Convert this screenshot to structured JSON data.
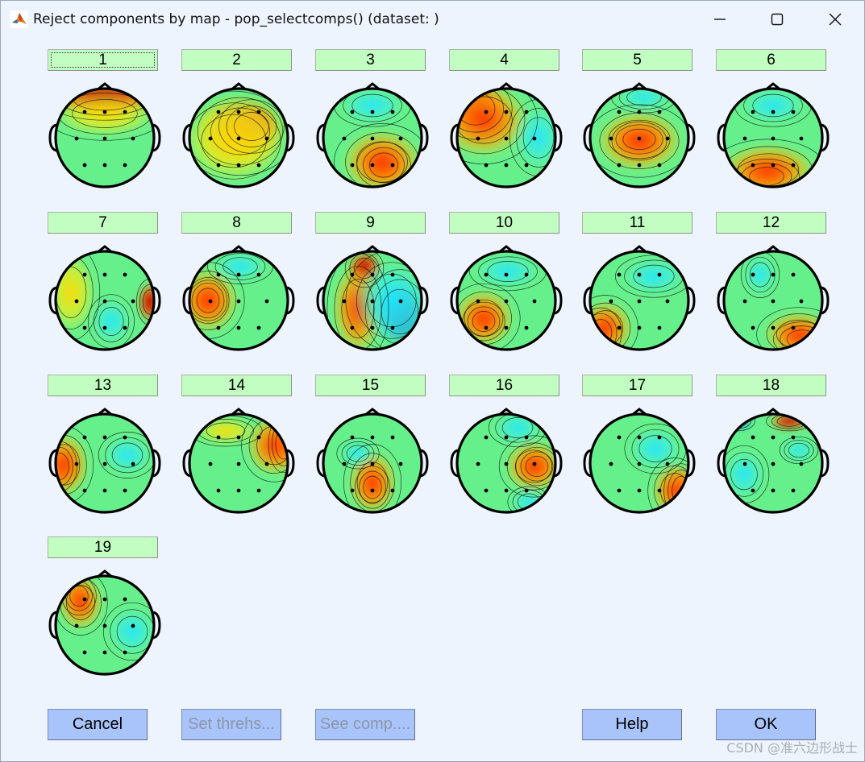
{
  "window": {
    "title": "Reject components by map - pop_selectcomps() (dataset: )"
  },
  "components": [
    {
      "label": "1"
    },
    {
      "label": "2"
    },
    {
      "label": "3"
    },
    {
      "label": "4"
    },
    {
      "label": "5"
    },
    {
      "label": "6"
    },
    {
      "label": "7"
    },
    {
      "label": "8"
    },
    {
      "label": "9"
    },
    {
      "label": "10"
    },
    {
      "label": "11"
    },
    {
      "label": "12"
    },
    {
      "label": "13"
    },
    {
      "label": "14"
    },
    {
      "label": "15"
    },
    {
      "label": "16"
    },
    {
      "label": "17"
    },
    {
      "label": "18"
    },
    {
      "label": "19"
    }
  ],
  "buttons": {
    "cancel": "Cancel",
    "set_thresh": "Set threhs...",
    "see_comp": "See comp....",
    "help": "Help",
    "ok": "OK"
  },
  "watermark": "CSDN @准六边形战士",
  "colors": {
    "window_bg": "#eef4fd",
    "component_button": "#c2fec2",
    "action_button": "#a9c4fb",
    "disabled_text": "#8a96ab",
    "map_base": "#66f08c",
    "map_hot": "#d40000",
    "map_cold": "#0050e6"
  },
  "icons": {
    "app": "matlab-icon",
    "minimize": "minimize-icon",
    "maximize": "maximize-icon",
    "close": "close-icon"
  }
}
